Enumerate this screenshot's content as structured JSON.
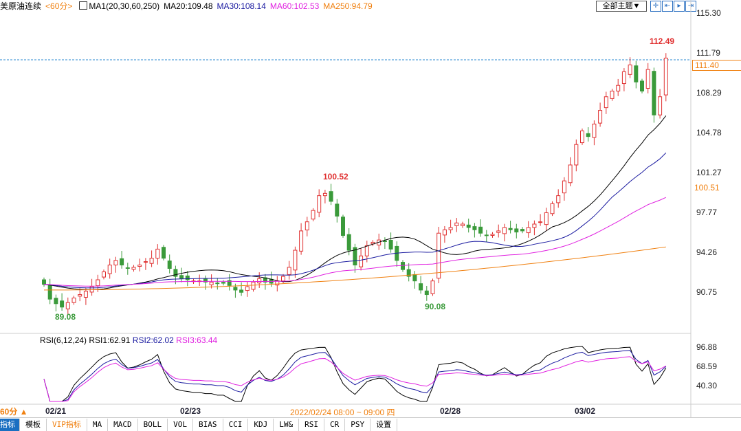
{
  "header": {
    "symbol": "美原油连续",
    "period": "<60分>",
    "indicator": "MA1(20,30,60,250)",
    "ma20": "MA20:109.48",
    "ma30": "MA30:108.14",
    "ma60": "MA60:102.53",
    "ma250": "MA250:94.79",
    "theme_button": "全部主题▼"
  },
  "colors": {
    "up": "#e03030",
    "down": "#3a9a3a",
    "ma20": "#000000",
    "ma30": "#1a1aa0",
    "ma60": "#e020e0",
    "ma250": "#f08010",
    "accent": "#f08010"
  },
  "price_axis": {
    "labels": [
      "115.30",
      "111.79",
      "108.29",
      "104.78",
      "101.27",
      "97.77",
      "94.26",
      "90.75"
    ],
    "current": "111.40",
    "ma_marker": "100.51"
  },
  "annotations": {
    "high": "112.49",
    "mid_high": "100.52",
    "low1": "89.08",
    "low2": "90.08"
  },
  "rsi": {
    "header": "RSI(6,12,24)",
    "rsi1": "RSI1:62.91",
    "rsi2": "RSI2:62.02",
    "rsi3": "RSI3:63.44",
    "labels": [
      "96.88",
      "68.59",
      "40.30"
    ]
  },
  "footer": {
    "period": "60分 ▲",
    "dates": [
      "02/21",
      "02/23",
      "02/28",
      "03/02"
    ],
    "cursor_time": "2022/02/24 08:00 ~ 09:00 四"
  },
  "tabs": [
    "指标",
    "模板",
    "VIP指标",
    "MA",
    "MACD",
    "BOLL",
    "VOL",
    "BIAS",
    "CCI",
    "KDJ",
    "LW&",
    "RSI",
    "CR",
    "PSY",
    "设置"
  ],
  "chart_data": {
    "type": "candlestick",
    "ylim": [
      89,
      115.3
    ],
    "closes": [
      91.5,
      90.2,
      89.8,
      89.5,
      89.9,
      90.3,
      90.6,
      90.9,
      91.3,
      91.9,
      92.6,
      93.2,
      93.6,
      93.2,
      92.9,
      93.0,
      93.2,
      93.5,
      93.8,
      94.6,
      93.8,
      92.9,
      92.2,
      92.0,
      91.9,
      91.8,
      91.8,
      91.7,
      91.7,
      91.6,
      91.6,
      91.4,
      91.0,
      90.8,
      91.3,
      91.7,
      92.0,
      91.7,
      91.6,
      91.8,
      92.2,
      93.0,
      94.5,
      96.2,
      97.0,
      98.0,
      99.3,
      99.5,
      98.8,
      97.5,
      95.8,
      94.5,
      93.2,
      94.0,
      94.9,
      95.2,
      95.4,
      95.3,
      94.6,
      93.6,
      92.8,
      92.2,
      91.8,
      91.0,
      90.6,
      91.8,
      96.0,
      96.3,
      96.5,
      96.9,
      96.8,
      96.5,
      96.3,
      96.0,
      95.8,
      95.9,
      96.2,
      96.5,
      96.3,
      96.1,
      96.2,
      96.5,
      96.8,
      97.0,
      97.8,
      98.6,
      99.3,
      100.6,
      102.0,
      103.8,
      105.0,
      104.5,
      105.6,
      106.8,
      108.0,
      108.5,
      109.0,
      110.2,
      110.8,
      109.3,
      108.5,
      110.4,
      106.4,
      108.0,
      111.4
    ],
    "ma250_range": [
      91.0,
      94.79
    ]
  }
}
